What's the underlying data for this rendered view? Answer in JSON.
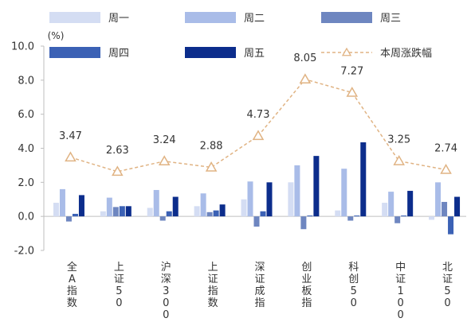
{
  "chart_data": {
    "type": "bar",
    "unit_label": "(%)",
    "categories": [
      "全A指数",
      "上证50",
      "沪深300",
      "上证指数",
      "深证成指",
      "创业板指",
      "科创50",
      "中证1000",
      "北证50"
    ],
    "series": [
      {
        "name": "周一",
        "type": "bar",
        "color": "#d4ddf3",
        "values": [
          0.8,
          0.3,
          0.5,
          0.6,
          1.0,
          2.0,
          0.35,
          0.8,
          -0.2
        ]
      },
      {
        "name": "周二",
        "type": "bar",
        "color": "#a9bce8",
        "values": [
          1.6,
          1.1,
          1.55,
          1.35,
          2.05,
          3.0,
          2.8,
          1.45,
          2.0
        ]
      },
      {
        "name": "周三",
        "type": "bar",
        "color": "#6e86c0",
        "values": [
          -0.3,
          0.55,
          -0.25,
          0.25,
          -0.6,
          -0.75,
          -0.25,
          -0.4,
          0.85
        ]
      },
      {
        "name": "周四",
        "type": "bar",
        "color": "#3b61b5",
        "values": [
          0.15,
          0.6,
          0.3,
          0.35,
          0.3,
          0.05,
          0.05,
          0.05,
          -1.05
        ]
      },
      {
        "name": "周五",
        "type": "bar",
        "color": "#0c2d8c",
        "values": [
          1.25,
          0.6,
          1.15,
          0.7,
          2.0,
          3.55,
          4.35,
          1.5,
          1.15
        ]
      },
      {
        "name": "本周涨跌幅",
        "type": "line",
        "color": "#e0b383",
        "values": [
          3.47,
          2.63,
          3.24,
          2.88,
          4.73,
          8.05,
          7.27,
          3.25,
          2.74
        ],
        "labels": [
          "3.47",
          "2.63",
          "3.24",
          "2.88",
          "4.73",
          "8.05",
          "7.27",
          "3.25",
          "2.74"
        ]
      }
    ],
    "y_ticks": [
      "10.0",
      "8.0",
      "6.0",
      "4.0",
      "2.0",
      "0.0",
      "-2.0"
    ],
    "y_tick_values": [
      10,
      8,
      6,
      4,
      2,
      0,
      -2
    ],
    "negative_tick_color": "#e02020",
    "ylim": [
      -2,
      10
    ],
    "legend_position": "top",
    "grid": false
  }
}
